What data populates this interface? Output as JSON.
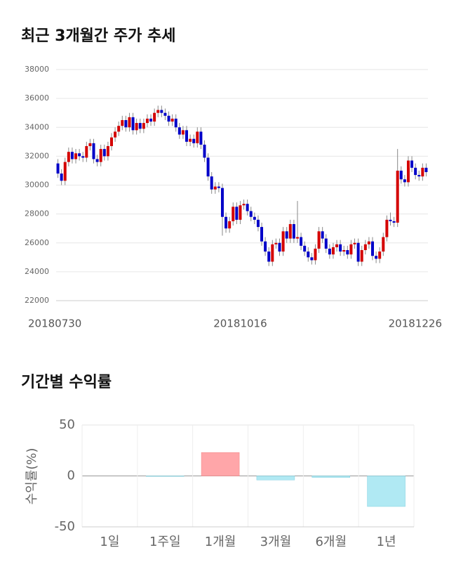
{
  "charts": [
    {
      "chart_data": {
        "type": "candlestick",
        "title": "최근 3개월간 주가 추세",
        "categories": [
          "20180730",
          null,
          null,
          null,
          null,
          null,
          null,
          null,
          null,
          null,
          null,
          null,
          null,
          null,
          null,
          null,
          null,
          null,
          null,
          null,
          null,
          null,
          null,
          null,
          null,
          null,
          null,
          null,
          null,
          null,
          null,
          null,
          null,
          null,
          null,
          null,
          null,
          null,
          null,
          null,
          null,
          null,
          null,
          null,
          null,
          null,
          null,
          null,
          null,
          null,
          null,
          "20181016",
          null,
          null,
          null,
          null,
          null,
          null,
          null,
          null,
          null,
          null,
          null,
          null,
          null,
          null,
          null,
          null,
          null,
          null,
          null,
          null,
          null,
          null,
          null,
          null,
          null,
          null,
          null,
          null,
          null,
          null,
          null,
          null,
          null,
          null,
          null,
          null,
          null,
          null,
          null,
          null,
          null,
          null,
          null,
          null,
          null,
          null,
          null,
          null,
          null,
          null,
          null,
          "20181226"
        ],
        "open": [
          31500,
          30800,
          30300,
          31600,
          32300,
          31800,
          32200,
          32000,
          31900,
          32700,
          32900,
          31800,
          31600,
          32500,
          32000,
          32700,
          33300,
          33700,
          34100,
          34500,
          34000,
          34700,
          33800,
          34300,
          33900,
          34300,
          34600,
          34400,
          35000,
          35200,
          35000,
          34800,
          34400,
          34600,
          34000,
          33500,
          33800,
          33000,
          33200,
          32900,
          33700,
          32800,
          31900,
          30600,
          29700,
          29900,
          29800,
          27800,
          27000,
          27500,
          28500,
          27600,
          28600,
          28700,
          28200,
          27800,
          27600,
          27100,
          26100,
          25400,
          24700,
          25900,
          26000,
          25400,
          26800,
          26300,
          27300,
          26300,
          26400,
          25800,
          25400,
          25000,
          24800,
          25600,
          26800,
          26300,
          25600,
          25200,
          25700,
          25900,
          25400,
          25500,
          25200,
          25900,
          26000,
          24700,
          25500,
          25900,
          26100,
          25100,
          24900,
          25400,
          26400,
          27600,
          27500,
          27400,
          31000,
          30400,
          30200,
          31700,
          31200,
          30700,
          30600,
          31200
        ],
        "high": [
          31800,
          31100,
          31900,
          32600,
          32600,
          32500,
          32500,
          32300,
          33000,
          33200,
          33200,
          32100,
          32800,
          32800,
          33000,
          33600,
          34000,
          34400,
          34800,
          34800,
          35000,
          35000,
          34600,
          34600,
          34600,
          34900,
          34900,
          35300,
          35500,
          35500,
          35300,
          35100,
          34900,
          34900,
          34300,
          34100,
          34100,
          33500,
          33500,
          34000,
          34000,
          33100,
          32200,
          30900,
          30200,
          30200,
          30100,
          28100,
          27800,
          28800,
          28800,
          28900,
          29000,
          29000,
          28500,
          28100,
          27900,
          27400,
          26400,
          25700,
          26200,
          26300,
          26300,
          27100,
          27100,
          27600,
          27600,
          28900,
          26700,
          26100,
          25700,
          25300,
          25900,
          27100,
          27100,
          26600,
          25900,
          26000,
          26200,
          26200,
          25800,
          25800,
          26200,
          26300,
          26300,
          25800,
          26200,
          26400,
          26400,
          25400,
          25700,
          26700,
          27900,
          28100,
          27800,
          32500,
          31300,
          30700,
          32000,
          32000,
          31500,
          31000,
          31500,
          31500
        ],
        "low": [
          30500,
          30000,
          30000,
          31300,
          31500,
          31500,
          31700,
          31600,
          31600,
          32400,
          31500,
          31300,
          31300,
          31700,
          31700,
          32400,
          33000,
          33400,
          33800,
          33700,
          33700,
          33500,
          33500,
          33600,
          33600,
          34000,
          34100,
          34100,
          34700,
          34700,
          34500,
          34100,
          34100,
          33700,
          33200,
          33200,
          32700,
          32700,
          32600,
          32600,
          32500,
          31600,
          30300,
          29400,
          29400,
          29500,
          26500,
          26700,
          26700,
          27200,
          27300,
          27300,
          28300,
          27900,
          27500,
          27300,
          26800,
          25800,
          25100,
          24400,
          24400,
          25600,
          25100,
          25100,
          26000,
          26000,
          26000,
          26000,
          25500,
          25100,
          24700,
          24500,
          24500,
          25300,
          26000,
          25300,
          24900,
          24900,
          25400,
          25100,
          25100,
          24900,
          24900,
          25600,
          24400,
          24400,
          25200,
          25600,
          24800,
          24600,
          24600,
          25100,
          26100,
          27200,
          27100,
          27100,
          30100,
          29900,
          29900,
          30900,
          30400,
          30300,
          30300,
          30600
        ],
        "close": [
          30800,
          30300,
          31600,
          32300,
          31800,
          32200,
          32000,
          31900,
          32700,
          32900,
          31800,
          31600,
          32500,
          32000,
          32700,
          33300,
          33700,
          34100,
          34500,
          34000,
          34700,
          33800,
          34300,
          33900,
          34300,
          34600,
          34400,
          35000,
          35200,
          35000,
          34800,
          34400,
          34600,
          34000,
          33500,
          33800,
          33000,
          33200,
          32900,
          33700,
          32800,
          31900,
          30600,
          29700,
          29900,
          29800,
          27800,
          27000,
          27500,
          28500,
          27600,
          28600,
          28700,
          28200,
          27800,
          27600,
          27100,
          26100,
          25400,
          24700,
          25900,
          26000,
          25400,
          26800,
          26300,
          27300,
          26300,
          26400,
          25800,
          25400,
          25000,
          24800,
          25600,
          26800,
          26300,
          25600,
          25200,
          25700,
          25900,
          25400,
          25500,
          25200,
          25900,
          26000,
          24700,
          25500,
          25900,
          26100,
          25100,
          24900,
          25400,
          26400,
          27600,
          27500,
          27400,
          31000,
          30400,
          30200,
          31700,
          31200,
          30700,
          30600,
          31200,
          30900
        ],
        "up_color": "#d40000",
        "down_color": "#0000c8",
        "grid": true,
        "ylim": [
          22000,
          38000
        ],
        "yticks": [
          22000,
          24000,
          26000,
          28000,
          30000,
          32000,
          34000,
          36000,
          38000
        ]
      }
    },
    {
      "chart_data": {
        "type": "bar",
        "title": "기간별 수익률",
        "y_label": "수익률(%)",
        "categories": [
          "1일",
          "1주일",
          "1개월",
          "3개월",
          "6개월",
          "1년"
        ],
        "values": [
          0,
          -0.5,
          23,
          -4,
          -1.5,
          -30
        ],
        "positive_color": "#ffa6a9",
        "negative_color": "#b0e9f3",
        "grid": true,
        "ylim": [
          -50,
          50
        ],
        "yticks": [
          -50,
          0,
          50
        ]
      }
    }
  ]
}
